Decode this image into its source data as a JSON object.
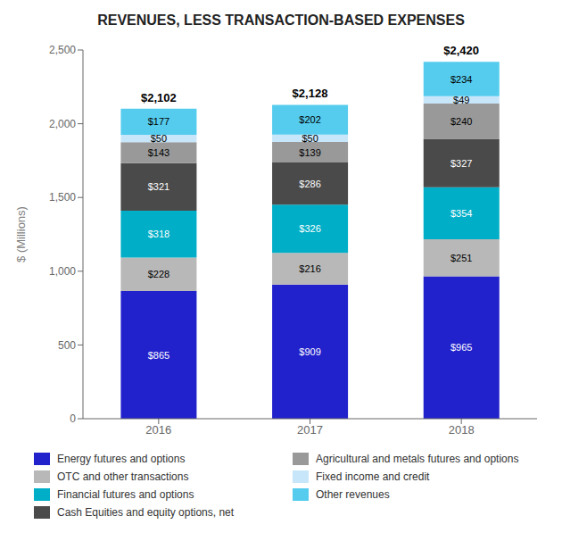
{
  "chart_data": {
    "type": "bar",
    "title": "REVENUES, LESS TRANSACTION-BASED EXPENSES",
    "ylabel": "$ (Millions)",
    "categories": [
      "2016",
      "2017",
      "2018"
    ],
    "stacked": true,
    "data_labels": true,
    "grid": false,
    "legend": "bottom",
    "ylim": [
      0,
      2500
    ],
    "yticks": [
      0,
      500,
      {
        "value": 1000,
        "label": "1,000"
      },
      {
        "value": 1500,
        "label": "1,500"
      },
      {
        "value": 2000,
        "label": "2,000"
      },
      {
        "value": 2500,
        "label": "2,500"
      }
    ],
    "series": [
      {
        "name": "Energy futures and options",
        "color": "#2222cc",
        "values": [
          865,
          909,
          965
        ],
        "value_labels": [
          "$865",
          "$909",
          "$965"
        ]
      },
      {
        "name": "OTC and other transactions",
        "color": "#b8b8b8",
        "values": [
          228,
          216,
          251
        ],
        "value_labels": [
          "$228",
          "$216",
          "$251"
        ]
      },
      {
        "name": "Financial futures and options",
        "color": "#00aec7",
        "values": [
          318,
          326,
          354
        ],
        "value_labels": [
          "$318",
          "$326",
          "$354"
        ]
      },
      {
        "name": "Cash Equities and equity options, net",
        "color": "#4a4a4a",
        "values": [
          321,
          286,
          327
        ],
        "value_labels": [
          "$321",
          "$286",
          "$327"
        ]
      },
      {
        "name": "Agricultural and metals futures and options",
        "color": "#999999",
        "values": [
          143,
          139,
          240
        ],
        "value_labels": [
          "$143",
          "$139",
          "$240"
        ]
      },
      {
        "name": "Fixed income and credit",
        "color": "#c8e6fa",
        "values": [
          50,
          50,
          49
        ],
        "value_labels": [
          "$50",
          "$50",
          "$49"
        ]
      },
      {
        "name": "Other revenues",
        "color": "#55ccee",
        "values": [
          177,
          202,
          234
        ],
        "value_labels": [
          "$177",
          "$202",
          "$234"
        ]
      }
    ],
    "totals": [
      2102,
      2128,
      2420
    ],
    "total_labels": [
      "$2,102",
      "$2,128",
      "$2,420"
    ]
  }
}
